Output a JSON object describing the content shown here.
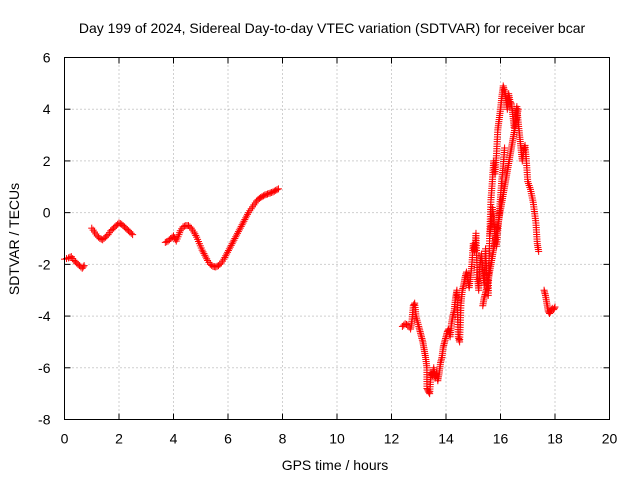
{
  "chart_data": {
    "type": "scatter",
    "title": "Day 199 of 2024, Sidereal Day-to-day VTEC variation (SDTVAR) for receiver bcar",
    "xlabel": "GPS time / hours",
    "ylabel": "SDTVAR / TECUs",
    "xlim": [
      0,
      20
    ],
    "ylim": [
      -8,
      6
    ],
    "xticks": [
      0,
      2,
      4,
      6,
      8,
      10,
      12,
      14,
      16,
      18,
      20
    ],
    "yticks": [
      -8,
      -6,
      -4,
      -2,
      0,
      2,
      4,
      6
    ],
    "grid": true,
    "marker": "plus",
    "color": "#ff0000",
    "series": [
      {
        "name": "SDTVAR",
        "segments": [
          [
            [
              0.0,
              -1.8
            ],
            [
              0.15,
              -1.75
            ],
            [
              0.25,
              -1.7
            ],
            [
              0.35,
              -1.85
            ],
            [
              0.45,
              -1.95
            ],
            [
              0.55,
              -2.05
            ],
            [
              0.65,
              -2.15
            ],
            [
              0.72,
              -2.05
            ]
          ],
          [
            [
              1.0,
              -0.6
            ],
            [
              1.1,
              -0.75
            ],
            [
              1.2,
              -0.9
            ],
            [
              1.3,
              -1.0
            ],
            [
              1.4,
              -1.05
            ],
            [
              1.5,
              -0.95
            ],
            [
              1.6,
              -0.85
            ],
            [
              1.7,
              -0.7
            ],
            [
              1.8,
              -0.6
            ],
            [
              1.9,
              -0.5
            ],
            [
              2.0,
              -0.4
            ],
            [
              2.1,
              -0.45
            ],
            [
              2.2,
              -0.55
            ],
            [
              2.3,
              -0.65
            ],
            [
              2.4,
              -0.75
            ],
            [
              2.5,
              -0.85
            ]
          ],
          [
            [
              3.7,
              -1.15
            ],
            [
              3.8,
              -1.1
            ],
            [
              3.9,
              -1.0
            ],
            [
              4.0,
              -0.9
            ],
            [
              4.1,
              -1.1
            ],
            [
              4.2,
              -0.85
            ],
            [
              4.25,
              -0.7
            ],
            [
              4.35,
              -0.55
            ],
            [
              4.45,
              -0.5
            ],
            [
              4.55,
              -0.5
            ],
            [
              4.65,
              -0.6
            ],
            [
              4.75,
              -0.75
            ],
            [
              4.85,
              -0.95
            ],
            [
              4.95,
              -1.2
            ],
            [
              5.05,
              -1.45
            ],
            [
              5.15,
              -1.65
            ],
            [
              5.25,
              -1.85
            ],
            [
              5.35,
              -2.0
            ],
            [
              5.45,
              -2.08
            ],
            [
              5.55,
              -2.1
            ],
            [
              5.65,
              -2.05
            ],
            [
              5.75,
              -1.95
            ],
            [
              5.85,
              -1.8
            ],
            [
              5.95,
              -1.6
            ],
            [
              6.05,
              -1.4
            ],
            [
              6.15,
              -1.2
            ],
            [
              6.25,
              -1.0
            ],
            [
              6.35,
              -0.8
            ],
            [
              6.45,
              -0.6
            ],
            [
              6.55,
              -0.4
            ],
            [
              6.65,
              -0.2
            ],
            [
              6.75,
              0.0
            ],
            [
              6.85,
              0.15
            ],
            [
              6.95,
              0.3
            ],
            [
              7.05,
              0.45
            ],
            [
              7.15,
              0.55
            ],
            [
              7.25,
              0.62
            ],
            [
              7.35,
              0.68
            ],
            [
              7.45,
              0.72
            ],
            [
              7.55,
              0.76
            ],
            [
              7.65,
              0.8
            ],
            [
              7.75,
              0.86
            ],
            [
              7.85,
              0.92
            ]
          ],
          [
            [
              12.4,
              -4.4
            ],
            [
              12.5,
              -4.3
            ],
            [
              12.6,
              -4.35
            ],
            [
              12.7,
              -4.5
            ],
            [
              12.75,
              -4.2
            ],
            [
              12.8,
              -3.6
            ],
            [
              12.85,
              -3.5
            ],
            [
              12.9,
              -4.0
            ],
            [
              13.0,
              -4.4
            ],
            [
              13.05,
              -4.6
            ],
            [
              13.1,
              -4.8
            ],
            [
              13.15,
              -5.0
            ],
            [
              13.2,
              -5.3
            ],
            [
              13.25,
              -5.6
            ],
            [
              13.3,
              -6.0
            ],
            [
              13.3,
              -6.8
            ],
            [
              13.35,
              -6.9
            ],
            [
              13.4,
              -7.0
            ],
            [
              13.45,
              -6.2
            ],
            [
              13.5,
              -6.3
            ],
            [
              13.55,
              -6.0
            ],
            [
              13.6,
              -6.4
            ],
            [
              13.65,
              -6.2
            ],
            [
              13.7,
              -6.5
            ],
            [
              13.75,
              -6.2
            ],
            [
              13.8,
              -5.8
            ],
            [
              13.85,
              -5.6
            ],
            [
              13.9,
              -5.2
            ],
            [
              13.95,
              -5.0
            ],
            [
              14.0,
              -4.8
            ],
            [
              14.05,
              -4.6
            ],
            [
              14.1,
              -4.5
            ],
            [
              14.15,
              -4.8
            ],
            [
              14.2,
              -4.3
            ],
            [
              14.25,
              -4.0
            ],
            [
              14.3,
              -3.8
            ],
            [
              14.35,
              -3.3
            ],
            [
              14.4,
              -3.0
            ],
            [
              14.45,
              -4.8
            ],
            [
              14.5,
              -5.0
            ],
            [
              14.55,
              -3.5
            ],
            [
              14.6,
              -3.0
            ],
            [
              14.65,
              -2.8
            ],
            [
              14.7,
              -2.5
            ],
            [
              14.75,
              -2.3
            ],
            [
              14.8,
              -2.6
            ],
            [
              14.85,
              -2.9
            ],
            [
              14.9,
              -2.5
            ],
            [
              14.95,
              -2.0
            ],
            [
              15.0,
              -1.2
            ],
            [
              15.05,
              -1.5
            ],
            [
              15.1,
              -0.8
            ],
            [
              15.15,
              -2.5
            ],
            [
              15.2,
              -3.0
            ],
            [
              15.25,
              -2.0
            ],
            [
              15.3,
              -1.6
            ],
            [
              15.35,
              -2.2
            ],
            [
              15.4,
              -2.8
            ],
            [
              15.45,
              -1.4
            ],
            [
              15.5,
              -2.5
            ],
            [
              15.55,
              -3.2
            ],
            [
              15.6,
              -1.0
            ],
            [
              15.65,
              0.5
            ],
            [
              15.7,
              1.2
            ],
            [
              15.75,
              2.0
            ],
            [
              15.8,
              1.5
            ],
            [
              15.85,
              2.2
            ],
            [
              15.9,
              3.2
            ],
            [
              15.95,
              3.6
            ],
            [
              16.0,
              4.0
            ],
            [
              16.05,
              4.5
            ],
            [
              16.1,
              4.9
            ],
            [
              16.15,
              4.7
            ],
            [
              16.2,
              4.4
            ],
            [
              16.25,
              4.0
            ],
            [
              16.3,
              4.6
            ],
            [
              16.35,
              4.3
            ],
            [
              16.4,
              4.2
            ],
            [
              16.45,
              3.8
            ],
            [
              16.5,
              3.3
            ],
            [
              16.55,
              3.7
            ],
            [
              16.6,
              4.1
            ],
            [
              16.65,
              3.5
            ],
            [
              16.7,
              3.0
            ],
            [
              16.75,
              2.5
            ],
            [
              16.8,
              2.0
            ],
            [
              16.85,
              2.4
            ],
            [
              16.9,
              2.6
            ],
            [
              16.95,
              2.0
            ],
            [
              17.0,
              1.2
            ],
            [
              17.1,
              0.9
            ],
            [
              17.2,
              0.4
            ],
            [
              17.3,
              -0.4
            ],
            [
              17.35,
              -1.2
            ],
            [
              17.4,
              -1.5
            ]
          ],
          [
            [
              15.35,
              -3.6
            ],
            [
              15.4,
              -3.3
            ],
            [
              15.45,
              -3.1
            ],
            [
              15.5,
              -2.9
            ],
            [
              15.55,
              -2.6
            ],
            [
              15.6,
              -2.3
            ],
            [
              15.65,
              -2.0
            ],
            [
              15.7,
              -1.7
            ],
            [
              15.75,
              -1.4
            ],
            [
              15.8,
              -1.1
            ],
            [
              15.85,
              -0.8
            ],
            [
              15.9,
              -0.5
            ],
            [
              15.95,
              -0.2
            ],
            [
              16.0,
              0.1
            ],
            [
              16.05,
              0.4
            ],
            [
              16.1,
              0.7
            ],
            [
              16.15,
              1.0
            ],
            [
              16.2,
              1.3
            ],
            [
              16.25,
              1.6
            ],
            [
              16.3,
              1.9
            ],
            [
              16.35,
              2.2
            ],
            [
              16.4,
              2.5
            ],
            [
              16.45,
              2.8
            ],
            [
              16.5,
              3.1
            ],
            [
              16.55,
              3.4
            ],
            [
              16.6,
              3.7
            ],
            [
              16.65,
              4.0
            ]
          ],
          [
            [
              15.6,
              -0.9
            ],
            [
              15.65,
              -0.5
            ],
            [
              15.7,
              0.2
            ],
            [
              15.75,
              -0.2
            ],
            [
              15.8,
              -0.9
            ],
            [
              15.85,
              -1.3
            ],
            [
              15.9,
              -0.7
            ],
            [
              15.95,
              -0.1
            ],
            [
              16.0,
              0.6
            ],
            [
              16.05,
              1.3
            ],
            [
              16.1,
              1.8
            ],
            [
              16.15,
              2.5
            ]
          ],
          [
            [
              17.6,
              -3.0
            ],
            [
              17.65,
              -3.2
            ],
            [
              17.7,
              -3.5
            ],
            [
              17.75,
              -3.8
            ],
            [
              17.8,
              -3.9
            ],
            [
              17.85,
              -3.8
            ],
            [
              17.9,
              -3.7
            ],
            [
              17.95,
              -3.75
            ],
            [
              18.0,
              -3.65
            ]
          ]
        ]
      }
    ]
  }
}
